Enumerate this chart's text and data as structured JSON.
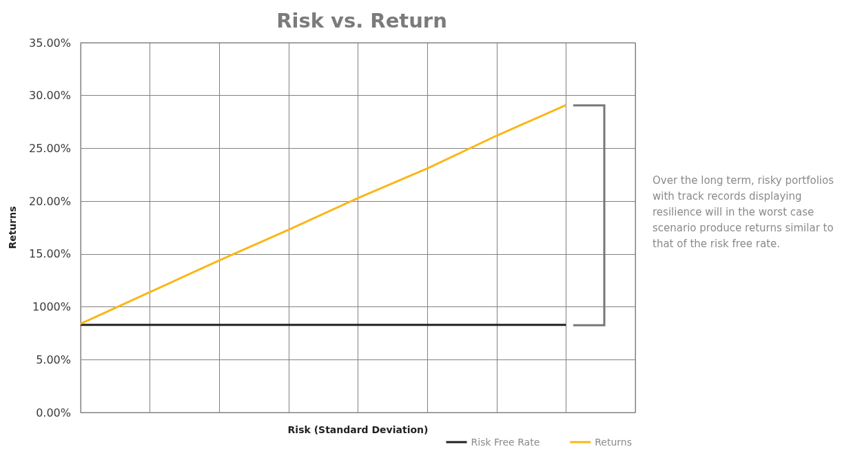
{
  "chart_data": {
    "type": "line",
    "title": "Risk vs. Return",
    "xlabel": "Risk (Standard Deviation)",
    "ylabel": "Returns",
    "annotations": [
      "Over the long term, risky portfolios with track records displaying resilience will in the worst case scenario produce returns similar to that of the risk free rate."
    ],
    "categories": [
      null,
      null,
      null,
      null,
      null,
      null,
      null,
      null,
      null
    ],
    "ylim": [
      0,
      35
    ],
    "yticks": [
      {
        "value": 0,
        "label": "0.00%"
      },
      {
        "value": 5,
        "label": "5.00%"
      },
      {
        "value": 10,
        "label": "1000%"
      },
      {
        "value": 15,
        "label": "15.00%"
      },
      {
        "value": 20,
        "label": "20.00%"
      },
      {
        "value": 25,
        "label": "25.00%"
      },
      {
        "value": 30,
        "label": "30.00%"
      },
      {
        "value": 35,
        "label": "35.00%"
      }
    ],
    "tick_labels": "y",
    "grid": true,
    "legend": "bottom right",
    "marker": "none",
    "line_style": "solid",
    "series": [
      {
        "name": "Risk Free Rate",
        "color": "#231f20",
        "values": [
          8.3,
          8.3,
          8.3,
          8.3,
          8.3,
          8.3,
          8.3,
          8.3,
          null
        ]
      },
      {
        "name": "Returns",
        "color": "#fbb616",
        "values": [
          8.4,
          11.4,
          14.4,
          17.3,
          20.3,
          23.1,
          26.2,
          29.1,
          null
        ]
      }
    ]
  }
}
